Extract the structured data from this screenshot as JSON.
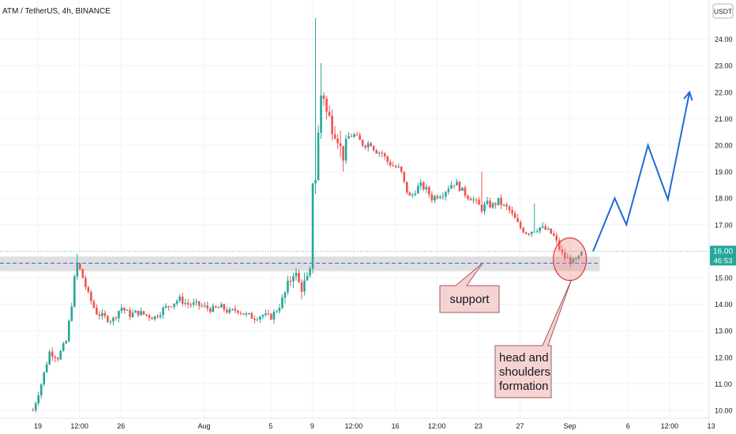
{
  "header": {
    "symbol_title": "ATM / TetherUS, 4h, BINANCE"
  },
  "currency_label": "USDT",
  "chart_data": {
    "type": "candlestick",
    "title": "ATM / TetherUS, 4h, BINANCE",
    "ylim": [
      9.95,
      24.9
    ],
    "y_ticks": [
      "10.00",
      "11.00",
      "12.00",
      "13.00",
      "14.00",
      "15.00",
      "17.00",
      "18.00",
      "19.00",
      "20.00",
      "21.00",
      "22.00",
      "23.00",
      "24.00"
    ],
    "x_ticks": [
      {
        "label": "19",
        "day": 0
      },
      {
        "label": "12:00",
        "day": 2.5
      },
      {
        "label": "26",
        "day": 5
      },
      {
        "label": "Aug",
        "day": 10
      },
      {
        "label": "5",
        "day": 14
      },
      {
        "label": "9",
        "day": 16.5
      },
      {
        "label": "12:00",
        "day": 19
      },
      {
        "label": "16",
        "day": 21.5
      },
      {
        "label": "12:00",
        "day": 24
      },
      {
        "label": "23",
        "day": 26.5
      },
      {
        "label": "27",
        "day": 29
      },
      {
        "label": "Sep",
        "day": 32
      },
      {
        "label": "6",
        "day": 35.5
      },
      {
        "label": "12:00",
        "day": 38
      },
      {
        "label": "13",
        "day": 40.5
      }
    ],
    "x_day_range": [
      -1,
      42.5
    ],
    "last_price": "16.00",
    "countdown": "46:53",
    "current_price": 16.0,
    "support_zone": [
      15.25,
      15.8
    ],
    "support_level": 15.55,
    "projection": [
      {
        "day": 33.4,
        "price": 16.0
      },
      {
        "day": 34.7,
        "price": 18.0
      },
      {
        "day": 35.4,
        "price": 17.0
      },
      {
        "day": 36.7,
        "price": 20.0
      },
      {
        "day": 37.9,
        "price": 17.95
      },
      {
        "day": 39.2,
        "price": 22.0
      }
    ],
    "highlight_circle": {
      "day": 32.0,
      "price": 15.7
    },
    "price_path": [
      [
        -0.3,
        10.0
      ],
      [
        0.2,
        11.0
      ],
      [
        0.7,
        12.2
      ],
      [
        1.2,
        12.0
      ],
      [
        1.7,
        12.6
      ],
      [
        2.1,
        14.3
      ],
      [
        2.3,
        15.6
      ],
      [
        2.6,
        15.2
      ],
      [
        3.0,
        14.4
      ],
      [
        3.5,
        13.7
      ],
      [
        4.0,
        13.5
      ],
      [
        4.5,
        13.4
      ],
      [
        5.0,
        13.9
      ],
      [
        5.5,
        13.6
      ],
      [
        6.0,
        13.7
      ],
      [
        6.5,
        13.6
      ],
      [
        7.0,
        13.5
      ],
      [
        7.5,
        13.8
      ],
      [
        8.0,
        14.0
      ],
      [
        8.5,
        14.2
      ],
      [
        9.0,
        14.0
      ],
      [
        9.5,
        14.0
      ],
      [
        10.0,
        13.9
      ],
      [
        10.5,
        13.8
      ],
      [
        11.0,
        13.9
      ],
      [
        11.5,
        13.7
      ],
      [
        12.0,
        13.8
      ],
      [
        12.5,
        13.6
      ],
      [
        13.0,
        13.5
      ],
      [
        13.5,
        13.6
      ],
      [
        14.0,
        13.5
      ],
      [
        14.5,
        13.9
      ],
      [
        15.0,
        14.6
      ],
      [
        15.4,
        15.3
      ],
      [
        15.8,
        14.6
      ],
      [
        16.2,
        14.9
      ],
      [
        16.4,
        15.2
      ],
      [
        16.55,
        19.2
      ],
      [
        16.7,
        18.8
      ],
      [
        16.9,
        20.7
      ],
      [
        17.1,
        22.5
      ],
      [
        17.3,
        21.3
      ],
      [
        17.6,
        20.9
      ],
      [
        18.0,
        20.5
      ],
      [
        18.3,
        19.5
      ],
      [
        18.6,
        20.3
      ],
      [
        19.0,
        20.4
      ],
      [
        19.3,
        20.2
      ],
      [
        19.6,
        20.0
      ],
      [
        20.0,
        20.1
      ],
      [
        20.3,
        19.8
      ],
      [
        20.7,
        19.7
      ],
      [
        21.0,
        19.4
      ],
      [
        21.4,
        19.2
      ],
      [
        21.8,
        19.1
      ],
      [
        22.1,
        18.4
      ],
      [
        22.4,
        18.0
      ],
      [
        22.7,
        18.3
      ],
      [
        23.0,
        18.5
      ],
      [
        23.4,
        18.3
      ],
      [
        23.7,
        18.0
      ],
      [
        24.0,
        18.1
      ],
      [
        24.4,
        18.2
      ],
      [
        24.8,
        18.5
      ],
      [
        25.1,
        18.6
      ],
      [
        25.5,
        18.3
      ],
      [
        25.8,
        18.1
      ],
      [
        26.1,
        18.0
      ],
      [
        26.4,
        17.8
      ],
      [
        26.7,
        17.6
      ],
      [
        27.0,
        17.8
      ],
      [
        27.3,
        17.7
      ],
      [
        27.7,
        17.9
      ],
      [
        28.0,
        17.7
      ],
      [
        28.3,
        17.6
      ],
      [
        28.7,
        17.2
      ],
      [
        29.0,
        16.9
      ],
      [
        29.4,
        16.7
      ],
      [
        29.8,
        16.8
      ],
      [
        30.2,
        16.9
      ],
      [
        30.6,
        16.8
      ],
      [
        31.0,
        16.6
      ],
      [
        31.3,
        16.2
      ],
      [
        31.6,
        15.8
      ],
      [
        31.9,
        15.7
      ],
      [
        32.2,
        15.6
      ],
      [
        32.5,
        15.7
      ],
      [
        32.8,
        16.0
      ]
    ],
    "spikes": [
      {
        "day": 2.3,
        "high": 15.9
      },
      {
        "day": 16.65,
        "high": 24.8
      },
      {
        "day": 17.0,
        "high": 23.1
      },
      {
        "day": 26.7,
        "high": 19.0
      },
      {
        "day": 29.9,
        "high": 17.8
      }
    ]
  },
  "annotations": {
    "support": "support",
    "pattern": "head and shoulders formation",
    "pattern_lines": [
      "head and",
      "shoulders",
      "formation"
    ]
  },
  "colors": {
    "up": "#26a69a",
    "down": "#ef5350",
    "projection": "#1e6bd6",
    "support_line": "#2962ff",
    "support_band": "#dcdcdc",
    "price_line": "#26a69a",
    "callout_fill": "#f6d3d3",
    "callout_border": "#a05a5a",
    "circle_fill": "#f08080",
    "circle_border": "#e53935"
  }
}
